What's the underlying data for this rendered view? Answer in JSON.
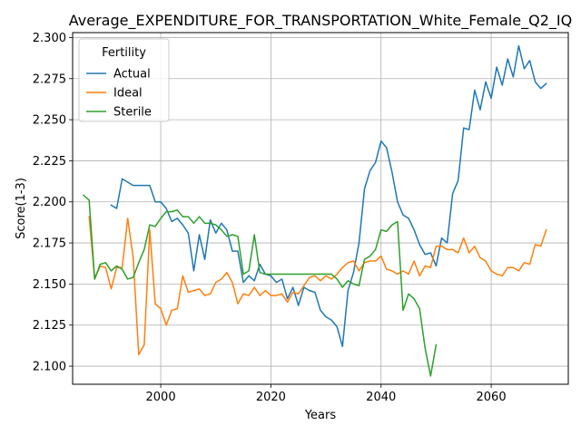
{
  "chart_data": {
    "type": "line",
    "title": "Average_EXPENDITURE_FOR_TRANSPORTATION_White_Female_Q2_IQ",
    "xlabel": "Years",
    "ylabel": "Score(1-3)",
    "xlim": [
      1984,
      2074
    ],
    "ylim": [
      2.089,
      2.303
    ],
    "x_ticks": [
      2000,
      2020,
      2040,
      2060
    ],
    "y_ticks": [
      2.1,
      2.125,
      2.15,
      2.175,
      2.2,
      2.225,
      2.25,
      2.275,
      2.3
    ],
    "grid": true,
    "legend": {
      "title": "Fertility",
      "placement": "upper-left"
    },
    "series": [
      {
        "name": "Actual",
        "color": "#1f77b4",
        "x": [
          1991,
          1992,
          1993,
          1994,
          1995,
          1996,
          1997,
          1998,
          1999,
          2000,
          2001,
          2002,
          2003,
          2004,
          2005,
          2006,
          2007,
          2008,
          2009,
          2010,
          2011,
          2012,
          2013,
          2014,
          2015,
          2016,
          2017,
          2018,
          2019,
          2020,
          2021,
          2022,
          2023,
          2024,
          2025,
          2026,
          2027,
          2028,
          2029,
          2030,
          2031,
          2032,
          2033,
          2034,
          2035,
          2036,
          2037,
          2038,
          2039,
          2040,
          2041,
          2042,
          2043,
          2044,
          2045,
          2046,
          2047,
          2048,
          2049,
          2050,
          2051,
          2052,
          2053,
          2054,
          2055,
          2056,
          2057,
          2058,
          2059,
          2060,
          2061,
          2062,
          2063,
          2064,
          2065,
          2066,
          2067,
          2068,
          2069,
          2070
        ],
        "y": [
          2.198,
          2.196,
          2.214,
          2.212,
          2.21,
          2.21,
          2.21,
          2.21,
          2.2,
          2.2,
          2.196,
          2.188,
          2.19,
          2.186,
          2.181,
          2.158,
          2.18,
          2.165,
          2.189,
          2.181,
          2.187,
          2.183,
          2.17,
          2.17,
          2.151,
          2.155,
          2.152,
          2.162,
          2.156,
          2.155,
          2.151,
          2.153,
          2.141,
          2.148,
          2.137,
          2.148,
          2.146,
          2.145,
          2.134,
          2.13,
          2.128,
          2.124,
          2.112,
          2.146,
          2.157,
          2.175,
          2.208,
          2.219,
          2.224,
          2.237,
          2.233,
          2.218,
          2.2,
          2.192,
          2.19,
          2.183,
          2.174,
          2.168,
          2.169,
          2.161,
          2.178,
          2.175,
          2.205,
          2.213,
          2.245,
          2.244,
          2.268,
          2.256,
          2.273,
          2.263,
          2.282,
          2.271,
          2.287,
          2.276,
          2.295,
          2.281,
          2.286,
          2.273,
          2.269,
          2.272
        ]
      },
      {
        "name": "Ideal",
        "color": "#ff7f0e",
        "x": [
          1987,
          1988,
          1989,
          1990,
          1991,
          1992,
          1993,
          1994,
          1995,
          1996,
          1997,
          1998,
          1999,
          2000,
          2001,
          2002,
          2003,
          2004,
          2005,
          2006,
          2007,
          2008,
          2009,
          2010,
          2011,
          2012,
          2013,
          2014,
          2015,
          2016,
          2017,
          2018,
          2019,
          2020,
          2021,
          2022,
          2023,
          2024,
          2025,
          2026,
          2027,
          2028,
          2029,
          2030,
          2031,
          2032,
          2033,
          2034,
          2035,
          2036,
          2037,
          2038,
          2039,
          2040,
          2041,
          2042,
          2043,
          2044,
          2045,
          2046,
          2047,
          2048,
          2049,
          2050,
          2051,
          2052,
          2053,
          2054,
          2055,
          2056,
          2057,
          2058,
          2059,
          2060,
          2061,
          2062,
          2063,
          2064,
          2065,
          2066,
          2067,
          2068,
          2069,
          2070
        ],
        "y": [
          2.191,
          2.153,
          2.161,
          2.16,
          2.147,
          2.16,
          2.16,
          2.19,
          2.166,
          2.107,
          2.113,
          2.183,
          2.138,
          2.135,
          2.125,
          2.134,
          2.135,
          2.155,
          2.145,
          2.146,
          2.147,
          2.143,
          2.144,
          2.151,
          2.153,
          2.157,
          2.151,
          2.138,
          2.144,
          2.143,
          2.148,
          2.143,
          2.146,
          2.143,
          2.143,
          2.144,
          2.139,
          2.145,
          2.144,
          2.149,
          2.154,
          2.155,
          2.152,
          2.155,
          2.153,
          2.156,
          2.16,
          2.163,
          2.164,
          2.158,
          2.163,
          2.164,
          2.164,
          2.167,
          2.159,
          2.158,
          2.156,
          2.158,
          2.156,
          2.164,
          2.155,
          2.161,
          2.16,
          2.173,
          2.173,
          2.171,
          2.171,
          2.169,
          2.178,
          2.169,
          2.173,
          2.166,
          2.164,
          2.158,
          2.156,
          2.155,
          2.16,
          2.16,
          2.158,
          2.163,
          2.162,
          2.174,
          2.173,
          2.183
        ]
      },
      {
        "name": "Sterile",
        "color": "#2ca02c",
        "x": [
          1986,
          1987,
          1988,
          1989,
          1990,
          1991,
          1992,
          1993,
          1994,
          1995,
          1996,
          1997,
          1998,
          1999,
          2000,
          2001,
          2002,
          2003,
          2004,
          2005,
          2006,
          2007,
          2008,
          2009,
          2010,
          2011,
          2012,
          2013,
          2014,
          2015,
          2016,
          2017,
          2018,
          2019,
          2020,
          2021,
          2022,
          2023,
          2024,
          2025,
          2026,
          2027,
          2028,
          2029,
          2030,
          2031,
          2032,
          2033,
          2034,
          2035,
          2036,
          2037,
          2038,
          2039,
          2040,
          2041,
          2042,
          2043,
          2044,
          2045,
          2046,
          2047,
          2048,
          2049,
          2050
        ],
        "y": [
          2.204,
          2.201,
          2.153,
          2.162,
          2.163,
          2.158,
          2.161,
          2.159,
          2.153,
          2.154,
          2.163,
          2.171,
          2.186,
          2.185,
          2.19,
          2.194,
          2.194,
          2.195,
          2.191,
          2.191,
          2.187,
          2.191,
          2.187,
          2.187,
          2.186,
          2.183,
          2.179,
          2.18,
          2.179,
          2.156,
          2.158,
          2.18,
          2.157,
          2.156,
          2.156,
          2.156,
          2.156,
          2.156,
          2.156,
          2.156,
          2.156,
          2.156,
          2.156,
          2.156,
          2.156,
          2.156,
          2.153,
          2.148,
          2.152,
          2.15,
          2.149,
          2.165,
          2.167,
          2.171,
          2.183,
          2.182,
          2.186,
          2.188,
          2.134,
          2.144,
          2.141,
          2.135,
          2.111,
          2.094,
          2.113
        ]
      }
    ]
  }
}
